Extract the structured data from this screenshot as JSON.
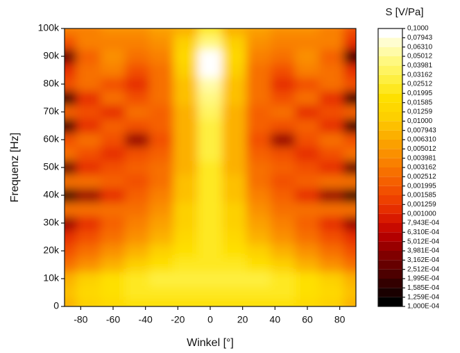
{
  "chart_data": {
    "type": "heatmap",
    "xlabel": "Winkel [°]",
    "ylabel": "Frequenz [Hz]",
    "colorbar_title": "S [V/Pa]",
    "x": [
      -90,
      -75,
      -60,
      -45,
      -30,
      -15,
      0,
      15,
      30,
      45,
      60,
      75,
      90
    ],
    "y": [
      0,
      5000,
      10000,
      15000,
      20000,
      25000,
      30000,
      35000,
      40000,
      45000,
      50000,
      55000,
      60000,
      65000,
      70000,
      75000,
      80000,
      85000,
      90000,
      95000,
      100000
    ],
    "z": [
      [
        0.00631,
        0.01,
        0.01259,
        0.01585,
        0.01585,
        0.01585,
        0.01585,
        0.01585,
        0.01585,
        0.01585,
        0.01259,
        0.01,
        0.00631
      ],
      [
        0.007943,
        0.01259,
        0.01585,
        0.01995,
        0.01995,
        0.01995,
        0.01995,
        0.01995,
        0.01995,
        0.01995,
        0.01585,
        0.01259,
        0.007943
      ],
      [
        0.00631,
        0.01,
        0.01585,
        0.01995,
        0.02512,
        0.02512,
        0.02512,
        0.02512,
        0.02512,
        0.01995,
        0.01585,
        0.01,
        0.00631
      ],
      [
        0.002512,
        0.003981,
        0.00631,
        0.01,
        0.01585,
        0.01995,
        0.01995,
        0.01995,
        0.01585,
        0.01,
        0.00631,
        0.003981,
        0.002512
      ],
      [
        0.001585,
        0.002512,
        0.003981,
        0.00631,
        0.01,
        0.01585,
        0.01995,
        0.01585,
        0.01,
        0.00631,
        0.003981,
        0.002512,
        0.001585
      ],
      [
        0.001,
        0.001585,
        0.002512,
        0.003981,
        0.00631,
        0.01259,
        0.01995,
        0.01259,
        0.00631,
        0.003981,
        0.002512,
        0.001585,
        0.001
      ],
      [
        0.0003981,
        0.001,
        0.001995,
        0.003162,
        0.005012,
        0.01,
        0.01995,
        0.01,
        0.005012,
        0.003162,
        0.001995,
        0.001,
        0.0003981
      ],
      [
        0.002512,
        0.002512,
        0.002512,
        0.002512,
        0.003981,
        0.01,
        0.01995,
        0.01,
        0.003981,
        0.002512,
        0.002512,
        0.002512,
        0.002512
      ],
      [
        0.0001585,
        0.0003981,
        0.001,
        0.001995,
        0.003162,
        0.007943,
        0.01995,
        0.007943,
        0.003162,
        0.001995,
        0.001,
        0.0003981,
        0.0001585
      ],
      [
        0.002512,
        0.002512,
        0.001995,
        0.001585,
        0.002512,
        0.007943,
        0.01995,
        0.007943,
        0.002512,
        0.001585,
        0.001995,
        0.002512,
        0.002512
      ],
      [
        0.0002512,
        0.001,
        0.001585,
        0.001995,
        0.002512,
        0.00631,
        0.01995,
        0.00631,
        0.002512,
        0.001995,
        0.001585,
        0.001,
        0.0002512
      ],
      [
        0.002512,
        0.001585,
        0.001,
        0.001585,
        0.001995,
        0.00631,
        0.02512,
        0.00631,
        0.001995,
        0.001585,
        0.001,
        0.001585,
        0.002512
      ],
      [
        0.001585,
        0.002512,
        0.001585,
        0.0003981,
        0.001585,
        0.00631,
        0.02512,
        0.00631,
        0.001585,
        0.0003981,
        0.001585,
        0.002512,
        0.001585
      ],
      [
        0.0001585,
        0.001,
        0.001995,
        0.001585,
        0.001995,
        0.00631,
        0.02512,
        0.00631,
        0.001995,
        0.001585,
        0.001995,
        0.001,
        0.0001585
      ],
      [
        0.001995,
        0.001585,
        0.001,
        0.002512,
        0.001995,
        0.00631,
        0.03162,
        0.00631,
        0.001995,
        0.002512,
        0.001,
        0.001585,
        0.001995
      ],
      [
        0.0001585,
        0.001,
        0.002512,
        0.001585,
        0.002512,
        0.007943,
        0.03981,
        0.007943,
        0.002512,
        0.001585,
        0.002512,
        0.001,
        0.0001585
      ],
      [
        0.001585,
        0.002512,
        0.001585,
        0.001,
        0.002512,
        0.007943,
        0.05012,
        0.007943,
        0.002512,
        0.001,
        0.001585,
        0.002512,
        0.001585
      ],
      [
        0.001,
        0.002512,
        0.003162,
        0.001585,
        0.002512,
        0.01,
        0.07943,
        0.01,
        0.002512,
        0.001585,
        0.003162,
        0.002512,
        0.001
      ],
      [
        0.0002512,
        0.001995,
        0.003981,
        0.002512,
        0.003162,
        0.01259,
        0.07943,
        0.01259,
        0.003162,
        0.002512,
        0.003981,
        0.001995,
        0.0001585
      ],
      [
        0.001585,
        0.003162,
        0.003162,
        0.003162,
        0.003981,
        0.01,
        0.03981,
        0.01,
        0.003981,
        0.003162,
        0.003162,
        0.003162,
        0.001
      ],
      [
        0.003162,
        0.003162,
        0.003981,
        0.003981,
        0.005012,
        0.00631,
        0.01995,
        0.00631,
        0.005012,
        0.003981,
        0.003981,
        0.003162,
        0.001585
      ]
    ],
    "xlim": [
      -90,
      90
    ],
    "xticks": [
      -80,
      -60,
      -40,
      -20,
      0,
      20,
      40,
      60,
      80
    ],
    "ylim": [
      0,
      100000
    ],
    "yticks": [
      0,
      {
        "value": 10000,
        "label": "10k"
      },
      {
        "value": 20000,
        "label": "20k"
      },
      {
        "value": 30000,
        "label": "30k"
      },
      {
        "value": 40000,
        "label": "40k"
      },
      {
        "value": 50000,
        "label": "50k"
      },
      {
        "value": 60000,
        "label": "60k"
      },
      {
        "value": 70000,
        "label": "70k"
      },
      {
        "value": 80000,
        "label": "80k"
      },
      {
        "value": 90000,
        "label": "90k"
      },
      {
        "value": 100000,
        "label": "100k"
      }
    ],
    "zlim": [
      0.0001,
      0.1
    ],
    "zlog": true,
    "zticks": [
      {
        "value": 0.0001,
        "label": "1,000E-04"
      },
      {
        "value": 0.0001259,
        "label": "1,259E-04"
      },
      {
        "value": 0.0001585,
        "label": "1,585E-04"
      },
      {
        "value": 0.0001995,
        "label": "1,995E-04"
      },
      {
        "value": 0.0002512,
        "label": "2,512E-04"
      },
      {
        "value": 0.0003162,
        "label": "3,162E-04"
      },
      {
        "value": 0.0003981,
        "label": "3,981E-04"
      },
      {
        "value": 0.0005012,
        "label": "5,012E-04"
      },
      {
        "value": 0.000631,
        "label": "6,310E-04"
      },
      {
        "value": 0.0007943,
        "label": "7,943E-04"
      },
      {
        "value": 0.001,
        "label": "0,001000"
      },
      {
        "value": 0.001259,
        "label": "0,001259"
      },
      {
        "value": 0.001585,
        "label": "0,001585"
      },
      {
        "value": 0.001995,
        "label": "0,001995"
      },
      {
        "value": 0.002512,
        "label": "0,002512"
      },
      {
        "value": 0.003162,
        "label": "0,003162"
      },
      {
        "value": 0.003981,
        "label": "0,003981"
      },
      {
        "value": 0.005012,
        "label": "0,005012"
      },
      {
        "value": 0.00631,
        "label": "0,006310"
      },
      {
        "value": 0.007943,
        "label": "0,007943"
      },
      {
        "value": 0.01,
        "label": "0,01000"
      },
      {
        "value": 0.01259,
        "label": "0,01259"
      },
      {
        "value": 0.01585,
        "label": "0,01585"
      },
      {
        "value": 0.01995,
        "label": "0,01995"
      },
      {
        "value": 0.02512,
        "label": "0,02512"
      },
      {
        "value": 0.03162,
        "label": "0,03162"
      },
      {
        "value": 0.03981,
        "label": "0,03981"
      },
      {
        "value": 0.05012,
        "label": "0,05012"
      },
      {
        "value": 0.0631,
        "label": "0,06310"
      },
      {
        "value": 0.07943,
        "label": "0,07943"
      },
      {
        "value": 0.1,
        "label": "0,1000"
      }
    ],
    "colors": [
      "#000000",
      "#1a0000",
      "#330000",
      "#4d0000",
      "#660000",
      "#800000",
      "#990000",
      "#b30000",
      "#c80a00",
      "#d91a00",
      "#e62e00",
      "#ee4000",
      "#f25000",
      "#f56000",
      "#f77000",
      "#f98000",
      "#fa9000",
      "#fba000",
      "#fcb000",
      "#fdc000",
      "#fdd000",
      "#fed800",
      "#fee000",
      "#fee820",
      "#feef40",
      "#fff460",
      "#fff880",
      "#fffba8",
      "#fffdd0",
      "#ffffff"
    ]
  }
}
